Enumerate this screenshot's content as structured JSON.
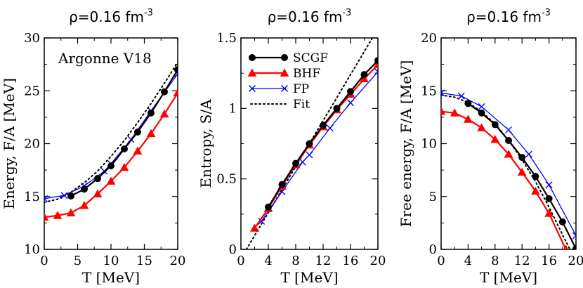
{
  "colors": {
    "scgf": "#000000",
    "bhf": "#ff0000",
    "fp": "#0000ff",
    "fit": "#000000"
  },
  "legend": [
    {
      "key": "scgf",
      "label": "SCGF",
      "marker": "circle",
      "dash": ""
    },
    {
      "key": "bhf",
      "label": "BHF",
      "marker": "triangle",
      "dash": ""
    },
    {
      "key": "fp",
      "label": "FP",
      "marker": "x",
      "dash": ""
    },
    {
      "key": "fit",
      "label": "Fit",
      "marker": "none",
      "dash": "dot"
    }
  ],
  "chart_data": [
    {
      "type": "line",
      "title": {
        "text": "ρ=0.16 fm",
        "sup": "-3"
      },
      "xlabel": "T [MeV]",
      "ylabel": "Energy, F/A [MeV]",
      "xlim": [
        0,
        20
      ],
      "ylim": [
        10,
        30
      ],
      "xticks": [
        0,
        5,
        10,
        15,
        20
      ],
      "yticks": [
        10,
        15,
        20,
        25,
        30
      ],
      "annotation": "Argonne V18",
      "series": [
        {
          "key": "scgf",
          "name": "SCGF",
          "x": [
            4,
            6,
            8,
            10,
            12,
            14,
            16,
            18,
            20
          ],
          "y": [
            15.05,
            15.7,
            16.7,
            17.9,
            19.5,
            21.1,
            22.9,
            24.9,
            27.0
          ]
        },
        {
          "key": "bhf",
          "name": "BHF",
          "x": [
            0,
            2,
            4,
            6,
            8,
            10,
            12,
            14,
            16,
            18,
            20
          ],
          "y": [
            13.05,
            13.2,
            13.45,
            14.15,
            15.25,
            16.45,
            17.75,
            19.3,
            20.95,
            22.8,
            24.8
          ]
        },
        {
          "key": "fp",
          "name": "FP",
          "x": [
            0,
            3,
            6,
            9,
            10,
            13,
            16,
            20
          ],
          "y": [
            14.8,
            15.1,
            16.0,
            17.4,
            18.1,
            20.4,
            23.1,
            26.6
          ]
        },
        {
          "key": "fit",
          "name": "Fit",
          "x": [
            0,
            2,
            4,
            6,
            8,
            10,
            12,
            14,
            16,
            18,
            20
          ],
          "y": [
            14.45,
            14.75,
            15.4,
            16.3,
            17.4,
            18.8,
            20.3,
            22.0,
            23.8,
            25.7,
            27.7
          ]
        }
      ]
    },
    {
      "type": "line",
      "title": {
        "text": "ρ=0.16 fm",
        "sup": "-3"
      },
      "xlabel": "T [MeV]",
      "ylabel": "Entropy, S/A",
      "xlim": [
        0,
        20
      ],
      "ylim": [
        0,
        1.5
      ],
      "xticks": [
        0,
        4,
        8,
        12,
        16,
        20
      ],
      "yticks": [
        0,
        0.5,
        1,
        1.5
      ],
      "ytick_labels": [
        "0",
        "0.5",
        "1",
        "1.5"
      ],
      "series": [
        {
          "key": "scgf",
          "name": "SCGF",
          "x": [
            4,
            6,
            8,
            10,
            12,
            14,
            16,
            18,
            20
          ],
          "y": [
            0.3,
            0.46,
            0.61,
            0.75,
            0.88,
            1.0,
            1.12,
            1.24,
            1.34
          ]
        },
        {
          "key": "bhf",
          "name": "BHF",
          "x": [
            2,
            4,
            6,
            8,
            10,
            12,
            14,
            16,
            18,
            20
          ],
          "y": [
            0.15,
            0.29,
            0.45,
            0.6,
            0.74,
            0.87,
            0.99,
            1.1,
            1.21,
            1.31
          ]
        },
        {
          "key": "fp",
          "name": "FP",
          "x": [
            3,
            6,
            9,
            10,
            13,
            16,
            20
          ],
          "y": [
            0.2,
            0.41,
            0.62,
            0.67,
            0.86,
            1.04,
            1.26
          ]
        },
        {
          "key": "fit",
          "name": "Fit",
          "x": [
            0.8,
            19.2
          ],
          "y": [
            0.0,
            1.5
          ]
        }
      ]
    },
    {
      "type": "line",
      "title": {
        "text": "ρ=0.16 fm",
        "sup": "-3"
      },
      "xlabel": "T [MeV]",
      "ylabel": "Free energy, F/A [MeV]",
      "xlim": [
        0,
        20
      ],
      "ylim": [
        0,
        20
      ],
      "xticks": [
        0,
        4,
        8,
        12,
        16,
        20
      ],
      "yticks": [
        0,
        5,
        10,
        15,
        20
      ],
      "series": [
        {
          "key": "scgf",
          "name": "SCGF",
          "x": [
            4,
            6,
            8,
            10,
            12,
            14,
            16,
            18,
            20
          ],
          "y": [
            13.8,
            12.9,
            11.8,
            10.3,
            8.7,
            6.9,
            4.8,
            2.6,
            0.05
          ]
        },
        {
          "key": "bhf",
          "name": "BHF",
          "x": [
            0,
            2,
            4,
            6,
            8,
            10,
            12,
            14,
            16,
            18.5
          ],
          "y": [
            13.05,
            12.9,
            12.3,
            11.5,
            10.4,
            9.0,
            7.3,
            5.5,
            3.4,
            0.0
          ]
        },
        {
          "key": "fp",
          "name": "FP",
          "x": [
            0,
            3,
            6,
            10,
            13,
            16,
            20
          ],
          "y": [
            14.8,
            14.5,
            13.5,
            11.3,
            9.0,
            6.1,
            1.3
          ]
        },
        {
          "key": "fit",
          "name": "Fit",
          "x": [
            0,
            2,
            4,
            6,
            8,
            10,
            12,
            14,
            16,
            18,
            19.1
          ],
          "y": [
            14.6,
            14.4,
            13.9,
            13.0,
            11.9,
            10.3,
            8.5,
            6.4,
            4.0,
            1.4,
            0.0
          ]
        }
      ]
    }
  ]
}
